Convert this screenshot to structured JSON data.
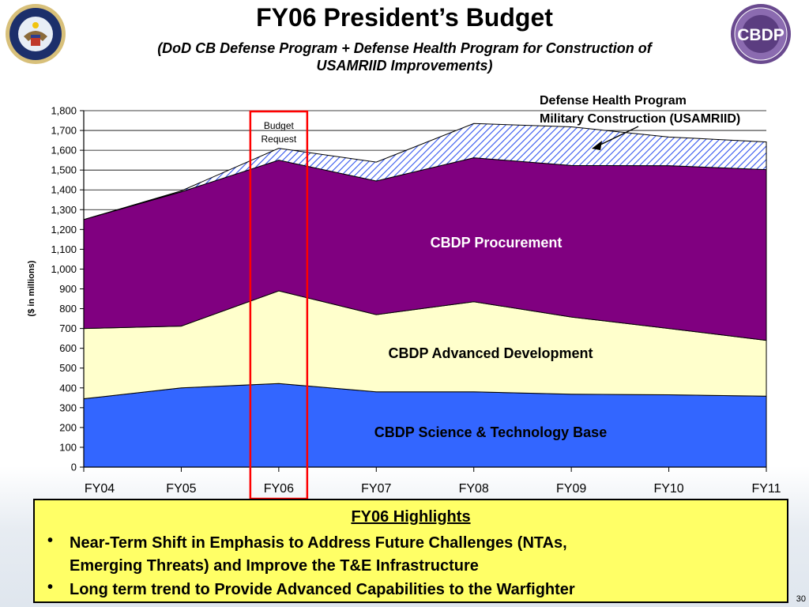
{
  "title": "FY06 President’s Budget",
  "subtitle_line1": "(DoD CB Defense Program + Defense Health Program for Construction of",
  "subtitle_line2": "USAMRIID Improvements)",
  "logos": {
    "dod_seal_icon": "dod-seal",
    "cbdp_seal_icon": "cbdp-seal",
    "cbdp_text": "CBDP"
  },
  "chart_data": {
    "type": "area",
    "stacked": true,
    "x": [
      "FY04",
      "FY05",
      "FY06",
      "FY07",
      "FY08",
      "FY09",
      "FY10",
      "FY11"
    ],
    "ylabel": "($ in millions)",
    "ylim": [
      0,
      1800
    ],
    "yticks": [
      "0",
      "100",
      "200",
      "300",
      "400",
      "500",
      "600",
      "700",
      "800",
      "900",
      "1,000",
      "1,100",
      "1,200",
      "1,300",
      "1,400",
      "1,500",
      "1,600",
      "1,700",
      "1,800"
    ],
    "grid": true,
    "series": [
      {
        "name": "CBDP Science & Technology Base",
        "color": "#3366ff",
        "values": [
          345,
          400,
          422,
          380,
          380,
          368,
          365,
          358
        ]
      },
      {
        "name": "CBDP Advanced Development",
        "color": "#ffffcc",
        "values": [
          355,
          312,
          468,
          390,
          455,
          390,
          335,
          282
        ]
      },
      {
        "name": "CBDP Procurement",
        "color": "#800080",
        "values": [
          550,
          678,
          660,
          675,
          727,
          765,
          822,
          862
        ]
      },
      {
        "name": "Defense Health Program Military Construction (USAMRIID)",
        "pattern": "hatch",
        "values": [
          0,
          5,
          60,
          95,
          173,
          195,
          145,
          140
        ]
      }
    ],
    "highlight": {
      "category": "FY06",
      "label_line1": "Budget",
      "label_line2": "Request",
      "color": "#ff0000"
    },
    "annotation_line1": "Defense Health Program",
    "annotation_line2": "Military Construction (USAMRIID)"
  },
  "highlights": {
    "title": "FY06 Highlights",
    "bullets": [
      {
        "symbol": "•",
        "line1": "Near-Term Shift in Emphasis to Address Future Challenges (NTAs,",
        "line2": "Emerging Threats) and Improve the T&E Infrastructure"
      },
      {
        "symbol": "•",
        "line1": "Long term trend to Provide Advanced Capabilities to the Warfighter",
        "line2": ""
      }
    ]
  },
  "slide_number": "30"
}
